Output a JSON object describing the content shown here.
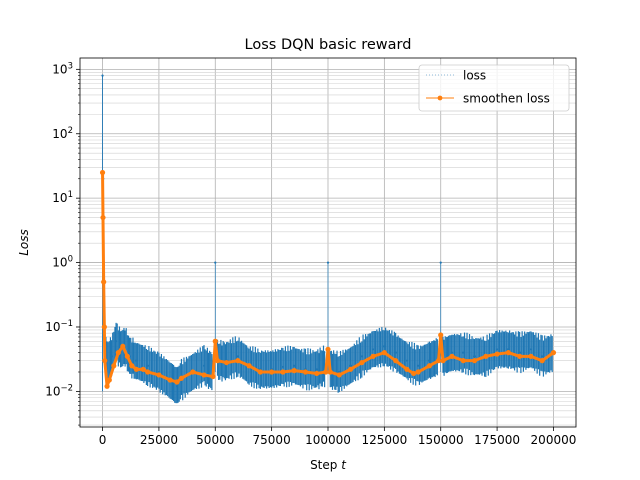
{
  "chart_data": {
    "type": "line",
    "title": "Loss DQN basic reward",
    "xlabel": "Step",
    "xlabel_var": "t",
    "ylabel": "Loss",
    "yscale": "log",
    "xlim": [
      -10000,
      210000
    ],
    "ylim": [
      0.0028,
      1500
    ],
    "xticks": [
      0,
      25000,
      50000,
      75000,
      100000,
      125000,
      150000,
      175000,
      200000
    ],
    "xtick_labels": [
      "0",
      "25000",
      "50000",
      "75000",
      "100000",
      "125000",
      "150000",
      "175000",
      "200000"
    ],
    "yticks": [
      0.01,
      0.1,
      1,
      10,
      100,
      1000
    ],
    "ytick_labels": [
      {
        "base": "10",
        "exp": "−2"
      },
      {
        "base": "10",
        "exp": "−1"
      },
      {
        "base": "10",
        "exp": "0"
      },
      {
        "base": "10",
        "exp": "1"
      },
      {
        "base": "10",
        "exp": "2"
      },
      {
        "base": "10",
        "exp": "3"
      }
    ],
    "grid": true,
    "grid_minor": true,
    "legend_position": "upper right",
    "series": [
      {
        "name": "loss",
        "color": "#1f77b4",
        "style": "dots",
        "x": [
          0,
          300,
          600,
          1000,
          2000,
          4000,
          6000,
          8000,
          10000,
          12000,
          15000,
          20000,
          25000,
          30000,
          33000,
          35000,
          40000,
          45000,
          49000,
          50000,
          51000,
          55000,
          60000,
          65000,
          70000,
          75000,
          80000,
          85000,
          90000,
          95000,
          99000,
          100000,
          101000,
          105000,
          110000,
          115000,
          120000,
          125000,
          130000,
          135000,
          140000,
          145000,
          149000,
          150000,
          151000,
          155000,
          160000,
          165000,
          170000,
          175000,
          180000,
          185000,
          190000,
          195000,
          200000
        ],
        "values": [
          800,
          20,
          1.0,
          0.05,
          0.03,
          0.035,
          0.06,
          0.045,
          0.05,
          0.035,
          0.03,
          0.025,
          0.02,
          0.015,
          0.012,
          0.015,
          0.02,
          0.025,
          0.02,
          1.0,
          0.03,
          0.03,
          0.035,
          0.025,
          0.022,
          0.022,
          0.024,
          0.025,
          0.022,
          0.022,
          0.025,
          1.0,
          0.022,
          0.02,
          0.025,
          0.035,
          0.045,
          0.05,
          0.04,
          0.03,
          0.025,
          0.03,
          0.035,
          1.0,
          0.035,
          0.04,
          0.04,
          0.035,
          0.035,
          0.045,
          0.045,
          0.04,
          0.045,
          0.035,
          0.04
        ]
      },
      {
        "name": "smoothen loss",
        "color": "#ff7f0e",
        "style": "line-marker",
        "x": [
          0,
          200,
          500,
          800,
          1000,
          2000,
          3000,
          5000,
          7000,
          9000,
          11000,
          13000,
          15000,
          18000,
          20000,
          25000,
          30000,
          33000,
          35000,
          40000,
          45000,
          49000,
          50000,
          51000,
          55000,
          60000,
          65000,
          70000,
          75000,
          80000,
          85000,
          90000,
          95000,
          99000,
          100000,
          101000,
          105000,
          110000,
          115000,
          120000,
          125000,
          130000,
          135000,
          138000,
          140000,
          145000,
          149000,
          150000,
          151000,
          155000,
          160000,
          165000,
          170000,
          175000,
          180000,
          185000,
          190000,
          195000,
          200000
        ],
        "values": [
          25,
          5,
          0.5,
          0.1,
          0.03,
          0.012,
          0.015,
          0.025,
          0.04,
          0.05,
          0.035,
          0.025,
          0.022,
          0.022,
          0.02,
          0.018,
          0.015,
          0.014,
          0.016,
          0.02,
          0.018,
          0.017,
          0.06,
          0.03,
          0.028,
          0.03,
          0.025,
          0.02,
          0.02,
          0.02,
          0.021,
          0.02,
          0.019,
          0.02,
          0.045,
          0.02,
          0.018,
          0.022,
          0.028,
          0.035,
          0.04,
          0.03,
          0.022,
          0.019,
          0.02,
          0.025,
          0.03,
          0.075,
          0.03,
          0.035,
          0.03,
          0.03,
          0.035,
          0.038,
          0.04,
          0.035,
          0.035,
          0.03,
          0.04
        ]
      }
    ]
  }
}
